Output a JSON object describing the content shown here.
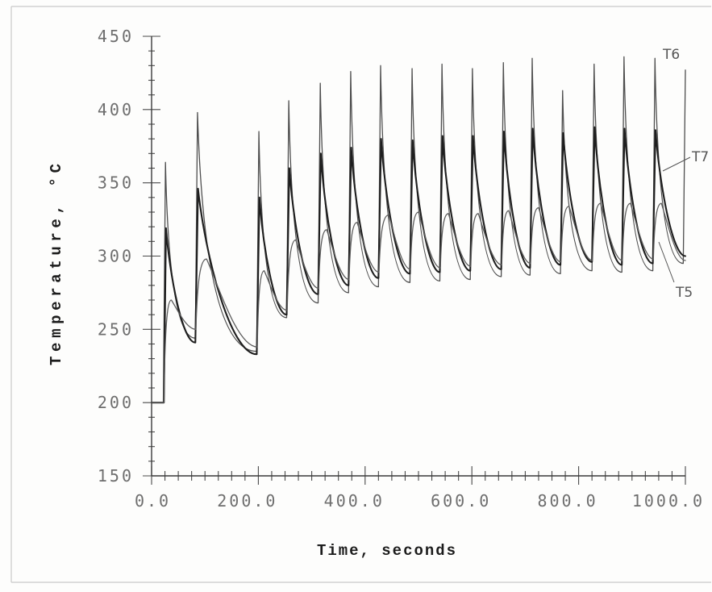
{
  "chart_data": {
    "type": "line",
    "xlabel": "Time, seconds",
    "ylabel": "Temperature, °C",
    "xlim": [
      0,
      1000
    ],
    "ylim": [
      150,
      450
    ],
    "x_ticks": [
      0,
      200,
      400,
      600,
      800,
      1000
    ],
    "x_tick_labels": [
      "0.0",
      "200.0",
      "400.0",
      "600.0",
      "800.0",
      "1000.0"
    ],
    "x_minor_step": 25,
    "y_ticks": [
      150,
      200,
      250,
      300,
      350,
      400,
      450
    ],
    "y_tick_labels": [
      "150",
      "200",
      "250",
      "300",
      "350",
      "400",
      "450"
    ],
    "y_minor_step": 10,
    "grid": false,
    "legend": "none",
    "series": [
      {
        "name": "T6",
        "color": "#4d4d4d",
        "points": [
          [
            0,
            200
          ],
          [
            22,
            200
          ],
          [
            26,
            364
          ],
          [
            82,
            244
          ],
          [
            86,
            398
          ],
          [
            197,
            235
          ],
          [
            201,
            385
          ],
          [
            253,
            258
          ],
          [
            257,
            406
          ],
          [
            312,
            268
          ],
          [
            316,
            418
          ],
          [
            369,
            275
          ],
          [
            373,
            426
          ],
          [
            425,
            279
          ],
          [
            429,
            430
          ],
          [
            484,
            282
          ],
          [
            488,
            428
          ],
          [
            540,
            283
          ],
          [
            544,
            431
          ],
          [
            597,
            284
          ],
          [
            601,
            428
          ],
          [
            655,
            286
          ],
          [
            659,
            432
          ],
          [
            709,
            287
          ],
          [
            713,
            435
          ],
          [
            766,
            288
          ],
          [
            770,
            413
          ],
          [
            825,
            290
          ],
          [
            829,
            431
          ],
          [
            881,
            289
          ],
          [
            885,
            436
          ],
          [
            939,
            290
          ],
          [
            943,
            435
          ],
          [
            996,
            295
          ],
          [
            1000,
            427
          ]
        ]
      },
      {
        "name": "T7",
        "color": "#1e1e1e",
        "points": [
          [
            0,
            200
          ],
          [
            23,
            200
          ],
          [
            27,
            319
          ],
          [
            82,
            241
          ],
          [
            87,
            346
          ],
          [
            197,
            233
          ],
          [
            202,
            340
          ],
          [
            253,
            260
          ],
          [
            258,
            360
          ],
          [
            312,
            274
          ],
          [
            317,
            370
          ],
          [
            369,
            280
          ],
          [
            374,
            374
          ],
          [
            425,
            285
          ],
          [
            430,
            380
          ],
          [
            484,
            288
          ],
          [
            489,
            379
          ],
          [
            540,
            289
          ],
          [
            545,
            382
          ],
          [
            597,
            290
          ],
          [
            602,
            382
          ],
          [
            655,
            291
          ],
          [
            660,
            385
          ],
          [
            709,
            292
          ],
          [
            714,
            387
          ],
          [
            766,
            294
          ],
          [
            771,
            384
          ],
          [
            825,
            296
          ],
          [
            830,
            388
          ],
          [
            881,
            294
          ],
          [
            886,
            387
          ],
          [
            939,
            295
          ],
          [
            944,
            386
          ],
          [
            1000,
            300
          ]
        ]
      },
      {
        "name": "T5",
        "color": "#5c5c5c",
        "points": [
          [
            0,
            200
          ],
          [
            23,
            200
          ],
          [
            37,
            270
          ],
          [
            83,
            250
          ],
          [
            103,
            298
          ],
          [
            198,
            238
          ],
          [
            211,
            290
          ],
          [
            254,
            263
          ],
          [
            270,
            311
          ],
          [
            313,
            278
          ],
          [
            328,
            318
          ],
          [
            370,
            284
          ],
          [
            385,
            323
          ],
          [
            426,
            289
          ],
          [
            444,
            328
          ],
          [
            485,
            291
          ],
          [
            500,
            330
          ],
          [
            541,
            292
          ],
          [
            556,
            329
          ],
          [
            598,
            293
          ],
          [
            612,
            329
          ],
          [
            656,
            294
          ],
          [
            669,
            331
          ],
          [
            710,
            295
          ],
          [
            725,
            333
          ],
          [
            767,
            296
          ],
          [
            782,
            334
          ],
          [
            826,
            297
          ],
          [
            841,
            336
          ],
          [
            882,
            297
          ],
          [
            897,
            336
          ],
          [
            940,
            298
          ],
          [
            955,
            336
          ],
          [
            1000,
            297
          ]
        ]
      }
    ]
  }
}
